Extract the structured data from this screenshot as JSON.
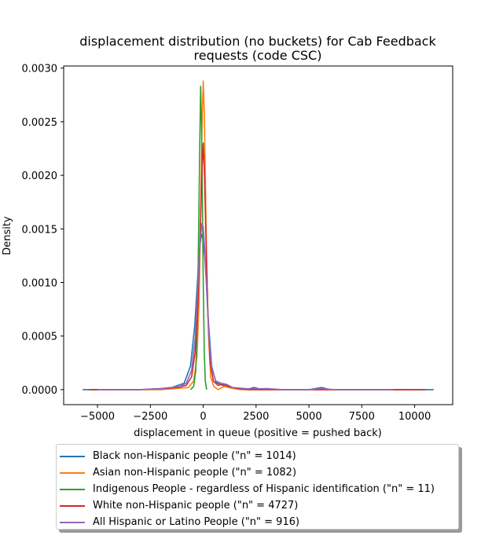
{
  "chart_data": {
    "type": "line",
    "title": "displacement distribution (no buckets)  for Cab Feedback\nrequests (code CSC)",
    "title_lines": [
      "displacement distribution (no buckets)  for Cab Feedback",
      "requests (code CSC)"
    ],
    "xlabel": "displacement in queue (positive = pushed back)",
    "ylabel": "Density",
    "xlim": [
      -6600,
      11800
    ],
    "ylim": [
      -0.00014,
      0.00302
    ],
    "xticks": [
      -5000,
      -2500,
      0,
      2500,
      5000,
      7500,
      10000
    ],
    "xtick_labels": [
      "−5000",
      "−2500",
      "0",
      "2500",
      "5000",
      "7500",
      "10000"
    ],
    "yticks": [
      0.0,
      0.0005,
      0.001,
      0.0015,
      0.002,
      0.0025,
      0.003
    ],
    "ytick_labels": [
      "0.0000",
      "0.0005",
      "0.0010",
      "0.0015",
      "0.0020",
      "0.0025",
      "0.0030"
    ],
    "grid": false,
    "legend_position": "below",
    "series": [
      {
        "name": "Black non-Hispanic people (\"n\" = 1014)",
        "color": "#1f77b4",
        "points": [
          [
            -5700,
            0
          ],
          [
            -3000,
            0
          ],
          [
            -2000,
            1e-05
          ],
          [
            -1500,
            2e-05
          ],
          [
            -900,
            6e-05
          ],
          [
            -600,
            0.00022
          ],
          [
            -400,
            0.0006
          ],
          [
            -250,
            0.00108
          ],
          [
            -150,
            0.00135
          ],
          [
            -80,
            0.00145
          ],
          [
            0,
            0.0014
          ],
          [
            80,
            0.00122
          ],
          [
            150,
            0.001
          ],
          [
            250,
            0.00062
          ],
          [
            400,
            0.00022
          ],
          [
            600,
            7e-05
          ],
          [
            900,
            4e-05
          ],
          [
            1200,
            2e-05
          ],
          [
            1600,
            1e-05
          ],
          [
            2100,
            3e-06
          ],
          [
            2400,
            2e-05
          ],
          [
            2700,
            5e-06
          ],
          [
            3000,
            1e-05
          ],
          [
            3500,
            0
          ],
          [
            5000,
            0
          ],
          [
            5600,
            2e-05
          ],
          [
            6000,
            0
          ],
          [
            9000,
            0
          ],
          [
            10900,
            0
          ]
        ]
      },
      {
        "name": "Asian non-Hispanic people (\"n\" = 1082)",
        "color": "#ff7f0e",
        "points": [
          [
            -5200,
            0
          ],
          [
            -2000,
            0
          ],
          [
            -700,
            2e-05
          ],
          [
            -450,
            8e-05
          ],
          [
            -300,
            0.0003
          ],
          [
            -200,
            0.0008
          ],
          [
            -120,
            0.0016
          ],
          [
            -60,
            0.0024
          ],
          [
            0,
            0.00288
          ],
          [
            50,
            0.0026
          ],
          [
            100,
            0.002
          ],
          [
            160,
            0.0012
          ],
          [
            250,
            0.0005
          ],
          [
            350,
            0.00012
          ],
          [
            500,
            3e-05
          ],
          [
            700,
            0
          ],
          [
            1000,
            3e-05
          ],
          [
            1400,
            1e-05
          ],
          [
            1800,
            0
          ],
          [
            3000,
            0
          ],
          [
            5000,
            0
          ],
          [
            9500,
            0
          ]
        ]
      },
      {
        "name": "Indigenous People - regardless of Hispanic identification (\"n\" = 11)",
        "color": "#2ca02c",
        "points": [
          [
            -600,
            0
          ],
          [
            -450,
            3e-05
          ],
          [
            -350,
            0.00018
          ],
          [
            -280,
            0.0006
          ],
          [
            -220,
            0.0014
          ],
          [
            -170,
            0.0022
          ],
          [
            -120,
            0.00283
          ],
          [
            -80,
            0.0025
          ],
          [
            -40,
            0.0018
          ],
          [
            0,
            0.001
          ],
          [
            50,
            0.00035
          ],
          [
            100,
            8e-05
          ],
          [
            160,
            0
          ]
        ]
      },
      {
        "name": "White non-Hispanic people (\"n\" = 4727)",
        "color": "#d62728",
        "points": [
          [
            -5400,
            0
          ],
          [
            -3000,
            0
          ],
          [
            -1800,
            1e-05
          ],
          [
            -1200,
            2e-05
          ],
          [
            -800,
            4e-05
          ],
          [
            -550,
            0.00012
          ],
          [
            -380,
            0.00035
          ],
          [
            -250,
            0.0008
          ],
          [
            -150,
            0.0014
          ],
          [
            -70,
            0.002
          ],
          [
            0,
            0.0023
          ],
          [
            60,
            0.002
          ],
          [
            130,
            0.0014
          ],
          [
            220,
            0.0007
          ],
          [
            330,
            0.00025
          ],
          [
            480,
            8e-05
          ],
          [
            700,
            4e-05
          ],
          [
            950,
            5e-05
          ],
          [
            1200,
            3e-05
          ],
          [
            1600,
            1e-05
          ],
          [
            2200,
            0
          ],
          [
            5000,
            0
          ],
          [
            10500,
            0
          ]
        ]
      },
      {
        "name": "All Hispanic or Latino People (\"n\" = 916)",
        "color": "#9467bd",
        "points": [
          [
            -5000,
            0
          ],
          [
            -3000,
            0
          ],
          [
            -2000,
            1e-05
          ],
          [
            -1500,
            2e-05
          ],
          [
            -1100,
            3e-05
          ],
          [
            -800,
            6e-05
          ],
          [
            -550,
            0.00018
          ],
          [
            -380,
            0.00048
          ],
          [
            -250,
            0.00098
          ],
          [
            -150,
            0.00138
          ],
          [
            -60,
            0.00155
          ],
          [
            0,
            0.00152
          ],
          [
            80,
            0.00128
          ],
          [
            170,
            0.0009
          ],
          [
            270,
            0.0005
          ],
          [
            400,
            0.0002
          ],
          [
            600,
            8e-05
          ],
          [
            850,
            6e-05
          ],
          [
            1100,
            5e-05
          ],
          [
            1400,
            2e-05
          ],
          [
            2000,
            1e-05
          ],
          [
            2600,
            8e-06
          ],
          [
            3000,
            1e-05
          ],
          [
            3800,
            0
          ],
          [
            5000,
            0
          ],
          [
            5600,
            1e-05
          ],
          [
            6200,
            0
          ],
          [
            9000,
            0
          ]
        ]
      }
    ]
  }
}
